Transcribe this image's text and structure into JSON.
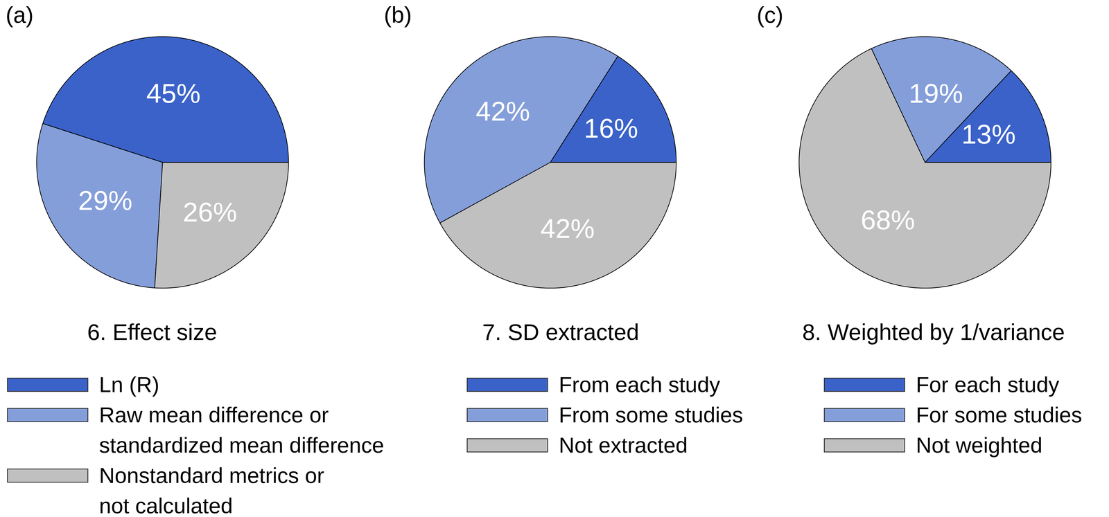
{
  "chart_data": [
    {
      "type": "pie",
      "annotations": [
        "(a)"
      ],
      "title": "6. Effect size",
      "categories": [
        "Ln (R)",
        "Raw mean difference or\nstandardized mean difference",
        "Nonstandard metrics or\nnot calculated"
      ],
      "values": [
        45,
        29,
        26
      ],
      "value_labels": [
        "45%",
        "29%",
        "26%"
      ],
      "colors": [
        "#3a62c9",
        "#849ed9",
        "#c0c0c0"
      ],
      "data_labels": true,
      "legend": "bottom"
    },
    {
      "type": "pie",
      "annotations": [
        "(b)"
      ],
      "title": "7. SD extracted",
      "categories": [
        "From each study",
        "From some studies",
        "Not extracted"
      ],
      "values": [
        16,
        42,
        42
      ],
      "value_labels": [
        "16%",
        "42%",
        "42%"
      ],
      "colors": [
        "#3a62c9",
        "#849ed9",
        "#c0c0c0"
      ],
      "data_labels": true,
      "legend": "bottom"
    },
    {
      "type": "pie",
      "annotations": [
        "(c)"
      ],
      "title": "8. Weighted by 1/variance",
      "categories": [
        "For each study",
        "For some studies",
        "Not weighted"
      ],
      "values": [
        13,
        19,
        68
      ],
      "value_labels": [
        "13%",
        "19%",
        "68%"
      ],
      "colors": [
        "#3a62c9",
        "#849ed9",
        "#c0c0c0"
      ],
      "data_labels": true,
      "legend": "bottom"
    }
  ]
}
